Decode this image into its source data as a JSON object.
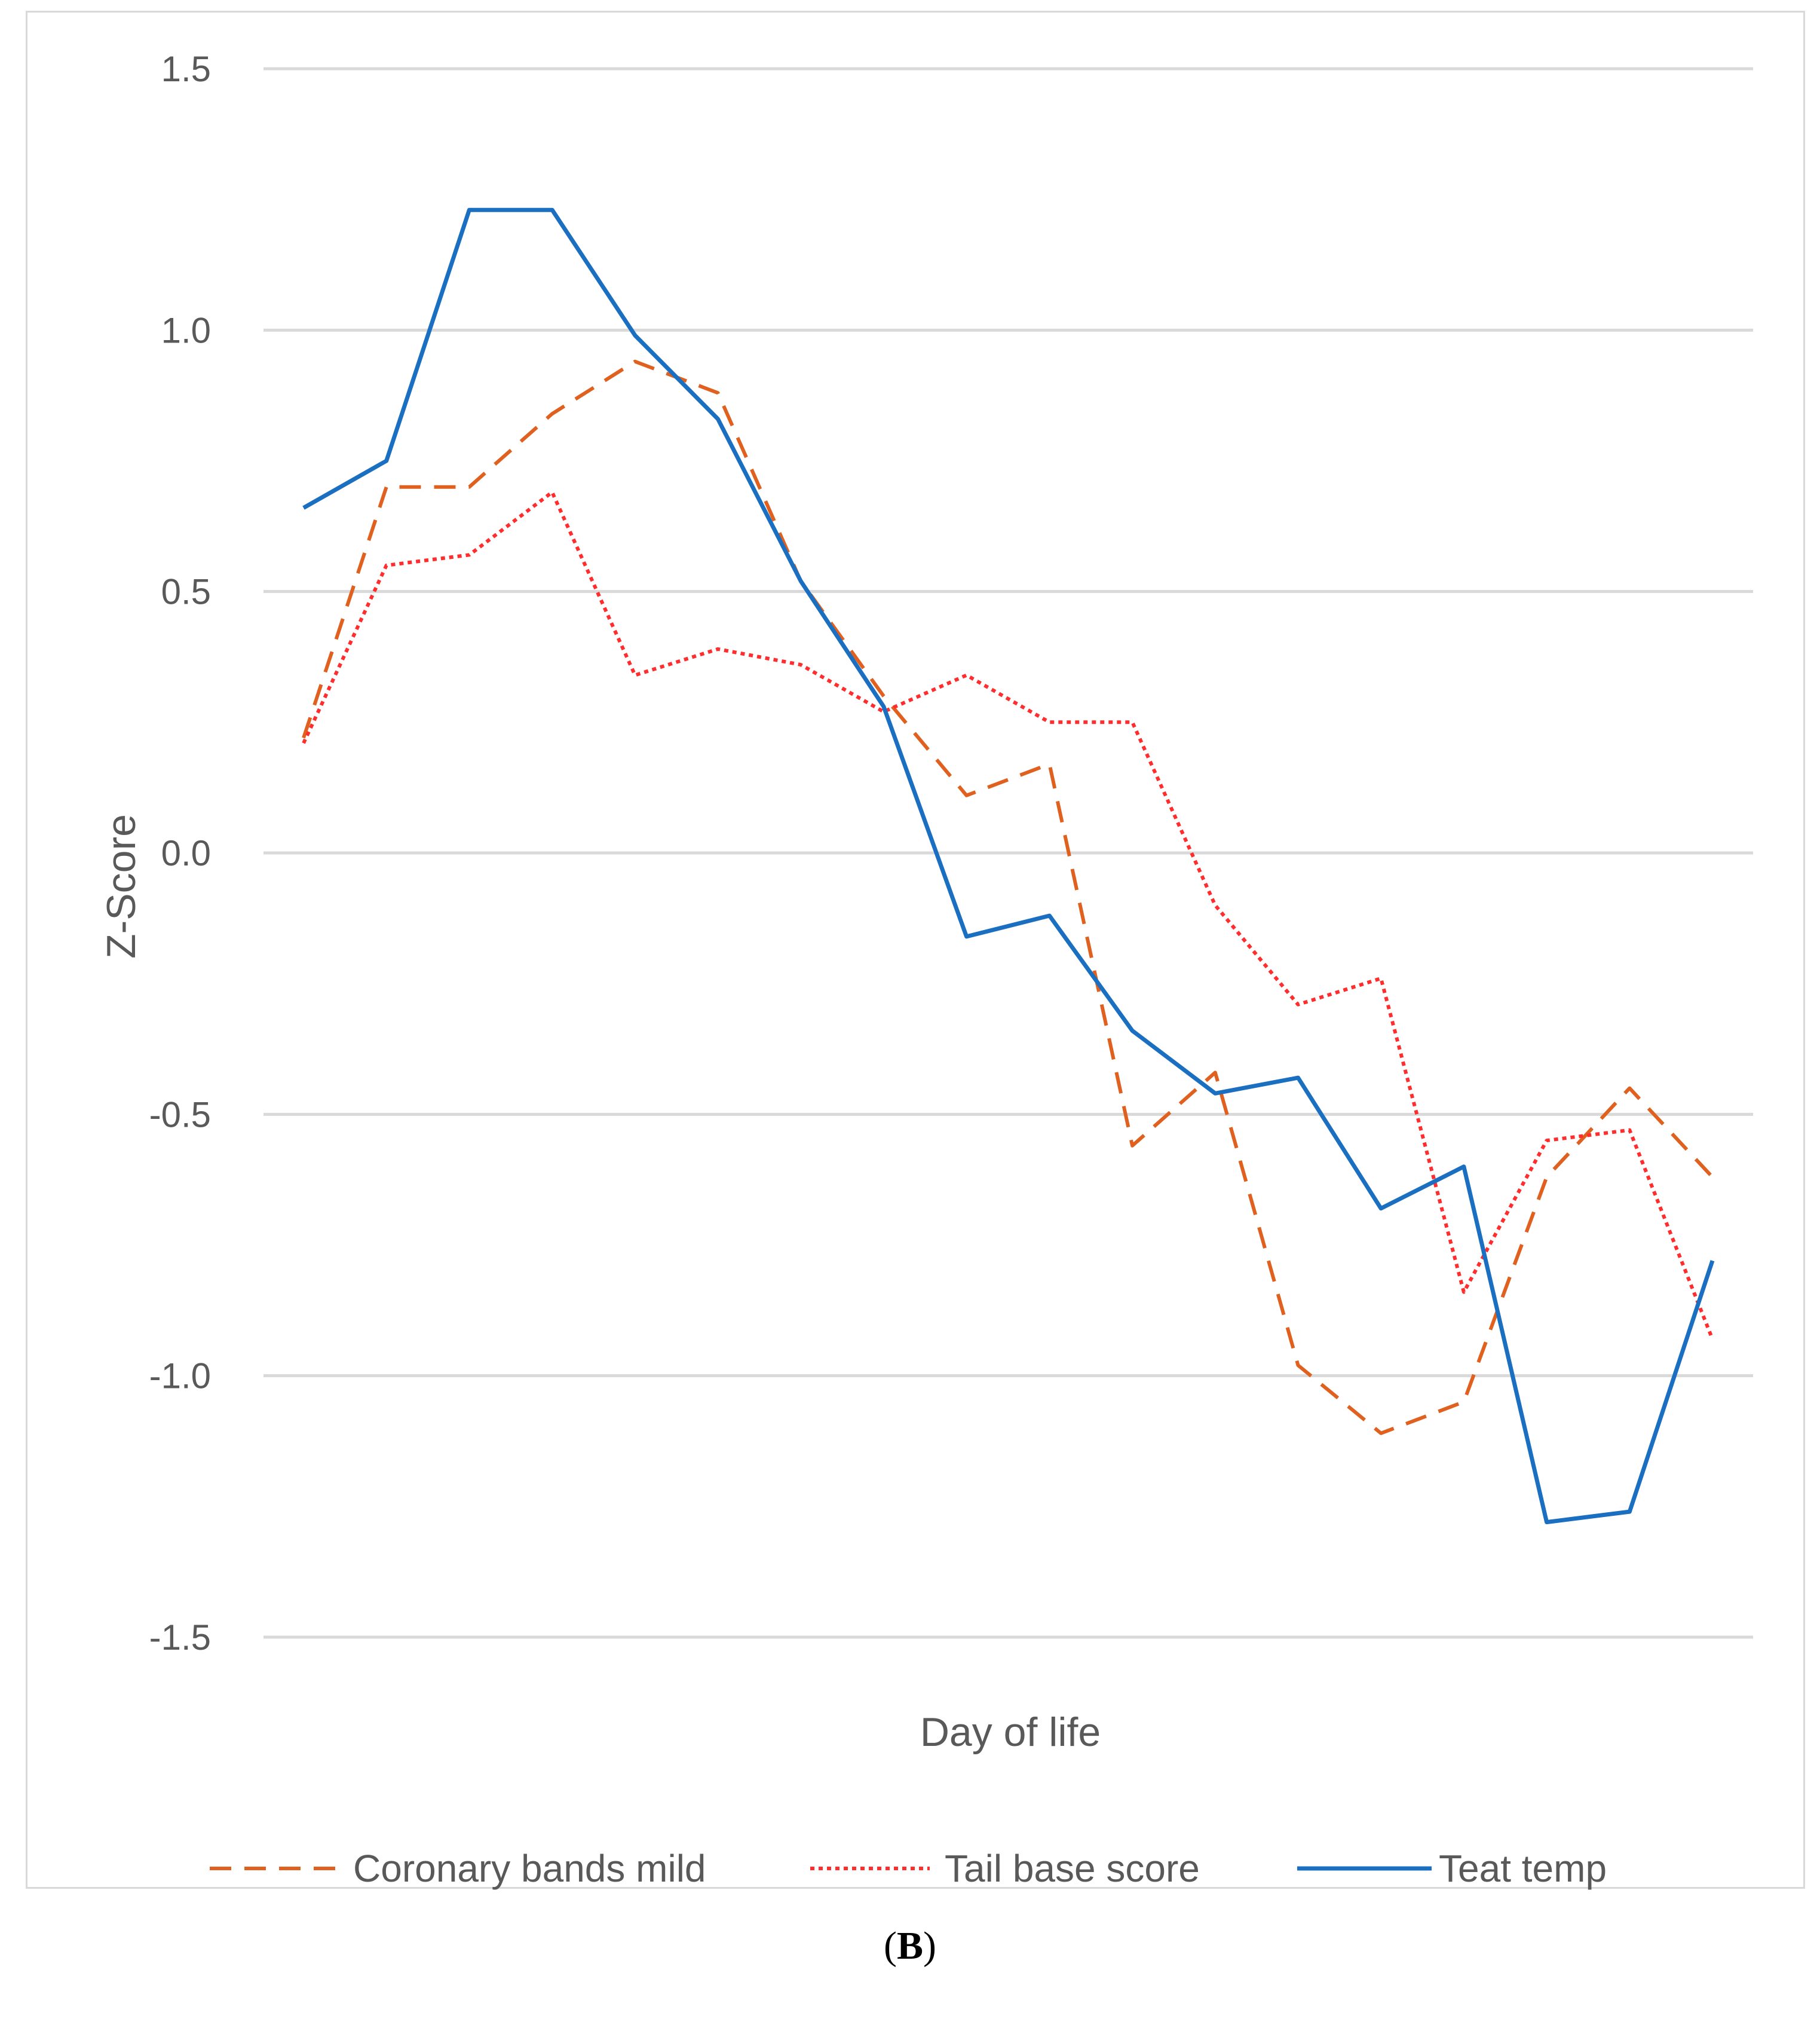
{
  "caption": {
    "open": "(",
    "letter": "B",
    "close": ")"
  },
  "chart_data": {
    "type": "line",
    "title": "",
    "xlabel": "Day of life",
    "ylabel": "Z-Score",
    "ylim": [
      -1.5,
      1.5
    ],
    "yticks": [
      1.5,
      1.0,
      0.5,
      0.0,
      -0.5,
      -1.0,
      -1.5
    ],
    "ytick_labels": [
      "1.5",
      "1.0",
      "0.5",
      "0.0",
      "-0.5",
      "-1.0",
      "-1.5"
    ],
    "grid": "horizontal",
    "legend_position": "bottom",
    "point_count": 18,
    "series": [
      {
        "name": "Coronary bands mild",
        "style": "dashed",
        "color": "#e0611f",
        "values": [
          0.22,
          0.7,
          0.7,
          0.84,
          0.94,
          0.88,
          0.52,
          0.3,
          0.11,
          0.17,
          -0.56,
          -0.42,
          -0.98,
          -1.11,
          -1.05,
          -0.62,
          -0.45,
          -0.62
        ]
      },
      {
        "name": "Tail base score",
        "style": "dotted",
        "color": "#ff2d2d",
        "values": [
          0.21,
          0.55,
          0.57,
          0.69,
          0.34,
          0.39,
          0.36,
          0.27,
          0.34,
          0.25,
          0.25,
          -0.1,
          -0.29,
          -0.24,
          -0.84,
          -0.55,
          -0.53,
          -0.93
        ]
      },
      {
        "name": "Teat temp",
        "style": "solid",
        "color": "#1a6fc1",
        "values": [
          0.66,
          0.75,
          1.23,
          1.23,
          0.99,
          0.83,
          0.52,
          0.28,
          -0.16,
          -0.12,
          -0.34,
          -0.46,
          -0.43,
          -0.68,
          -0.6,
          -1.28,
          -1.26,
          -0.78
        ]
      }
    ]
  }
}
